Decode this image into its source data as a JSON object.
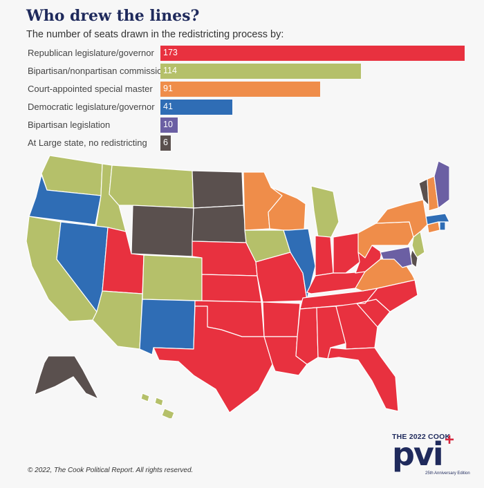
{
  "header": {
    "title": "Who drew the lines?",
    "subtitle": "The number of seats drawn in the redistricting process by:"
  },
  "colors": {
    "republican": "#e8313f",
    "commission": "#b5c06a",
    "court": "#ef8d4a",
    "democratic": "#2f6db5",
    "bipartisan": "#6b5fa3",
    "at_large": "#5a504e"
  },
  "chart_data": [
    {
      "type": "bar",
      "orientation": "horizontal",
      "categories": [
        "Republican legislature/governor",
        "Bipartisan/nonpartisan commission",
        "Court-appointed special master",
        "Democratic legislature/governor",
        "Bipartisan legislation",
        "At Large state, no redistricting"
      ],
      "values": [
        173,
        114,
        91,
        41,
        10,
        6
      ],
      "value_labels": [
        "173",
        "114",
        "91",
        "41",
        "10",
        "6"
      ],
      "bar_colors": [
        "#e8313f",
        "#b5c06a",
        "#ef8d4a",
        "#2f6db5",
        "#6b5fa3",
        "#5a504e"
      ],
      "xlim": [
        0,
        173
      ]
    },
    {
      "type": "map",
      "legend_keys": {
        "R": "Republican legislature/governor",
        "C": "Bipartisan/nonpartisan commission",
        "M": "Court-appointed special master",
        "D": "Democratic legislature/governor",
        "B": "Bipartisan legislation",
        "A": "At Large state, no redistricting"
      },
      "states": {
        "WA": "C",
        "OR": "D",
        "CA": "C",
        "ID": "C",
        "NV": "D",
        "MT": "C",
        "WY": "A",
        "UT": "R",
        "AZ": "C",
        "CO": "C",
        "NM": "D",
        "ND": "A",
        "SD": "A",
        "NE": "R",
        "KS": "R",
        "OK": "R",
        "TX": "R",
        "MN": "M",
        "IA": "C",
        "MO": "R",
        "AR": "R",
        "LA": "R",
        "WI": "M",
        "IL": "D",
        "MI": "C",
        "IN": "R",
        "OH": "R",
        "KY": "R",
        "TN": "R",
        "MS": "R",
        "AL": "R",
        "GA": "R",
        "FL": "R",
        "SC": "R",
        "NC": "R",
        "VA": "M",
        "WV": "R",
        "PA": "M",
        "NY": "M",
        "NJ": "C",
        "DE": "A",
        "MD": "B",
        "CT": "M",
        "RI": "D",
        "MA": "D",
        "VT": "A",
        "NH": "M",
        "ME": "B",
        "AK": "A",
        "HI": "C"
      }
    }
  ],
  "footer": {
    "copyright": "© 2022, The Cook Political Report. All rights reserved."
  },
  "logo": {
    "top_text": "THE 2022 COOK",
    "main_text": "pvi",
    "sub_text": "25th Anniversary Edition"
  }
}
